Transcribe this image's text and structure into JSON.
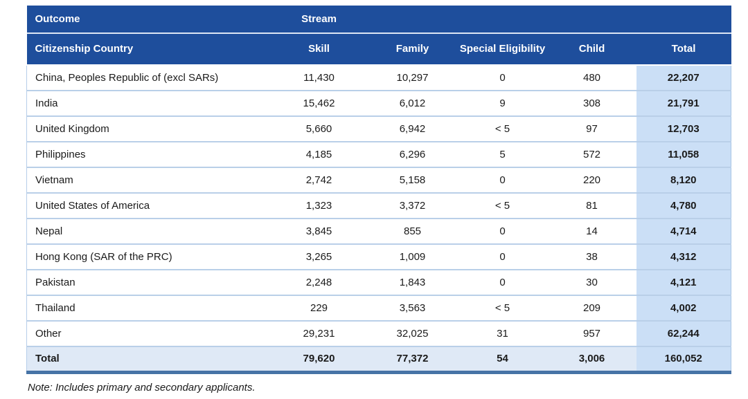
{
  "colors": {
    "header_bg": "#1E4E9C",
    "header_text": "#FFFFFF",
    "total_col_bg": "#CBDFF6",
    "total_row_bg": "#DFE9F6",
    "divider": "#B9CFE8",
    "bottom_border": "#4673A6",
    "body_text": "#1A1A1A"
  },
  "table": {
    "header_row1": {
      "outcome": "Outcome",
      "stream": "Stream"
    },
    "header_row2": {
      "country": "Citizenship Country",
      "skill": "Skill",
      "family": "Family",
      "special": "Special Eligibility",
      "child": "Child",
      "total": "Total"
    },
    "rows": [
      {
        "country": "China, Peoples Republic of (excl SARs)",
        "skill": "11,430",
        "family": "10,297",
        "special": "0",
        "child": "480",
        "total": "22,207"
      },
      {
        "country": "India",
        "skill": "15,462",
        "family": "6,012",
        "special": "9",
        "child": "308",
        "total": "21,791"
      },
      {
        "country": "United Kingdom",
        "skill": "5,660",
        "family": "6,942",
        "special": "< 5",
        "child": "97",
        "total": "12,703"
      },
      {
        "country": "Philippines",
        "skill": "4,185",
        "family": "6,296",
        "special": "5",
        "child": "572",
        "total": "11,058"
      },
      {
        "country": "Vietnam",
        "skill": "2,742",
        "family": "5,158",
        "special": "0",
        "child": "220",
        "total": "8,120"
      },
      {
        "country": "United States of America",
        "skill": "1,323",
        "family": "3,372",
        "special": "< 5",
        "child": "81",
        "total": "4,780"
      },
      {
        "country": "Nepal",
        "skill": "3,845",
        "family": "855",
        "special": "0",
        "child": "14",
        "total": "4,714"
      },
      {
        "country": "Hong Kong (SAR of the PRC)",
        "skill": "3,265",
        "family": "1,009",
        "special": "0",
        "child": "38",
        "total": "4,312"
      },
      {
        "country": "Pakistan",
        "skill": "2,248",
        "family": "1,843",
        "special": "0",
        "child": "30",
        "total": "4,121"
      },
      {
        "country": "Thailand",
        "skill": "229",
        "family": "3,563",
        "special": "< 5",
        "child": "209",
        "total": "4,002"
      },
      {
        "country": "Other",
        "skill": "29,231",
        "family": "32,025",
        "special": "31",
        "child": "957",
        "total": "62,244"
      }
    ],
    "total_row": {
      "country": "Total",
      "skill": "79,620",
      "family": "77,372",
      "special": "54",
      "child": "3,006",
      "total": "160,052"
    },
    "note": "Note: Includes primary and secondary applicants."
  }
}
